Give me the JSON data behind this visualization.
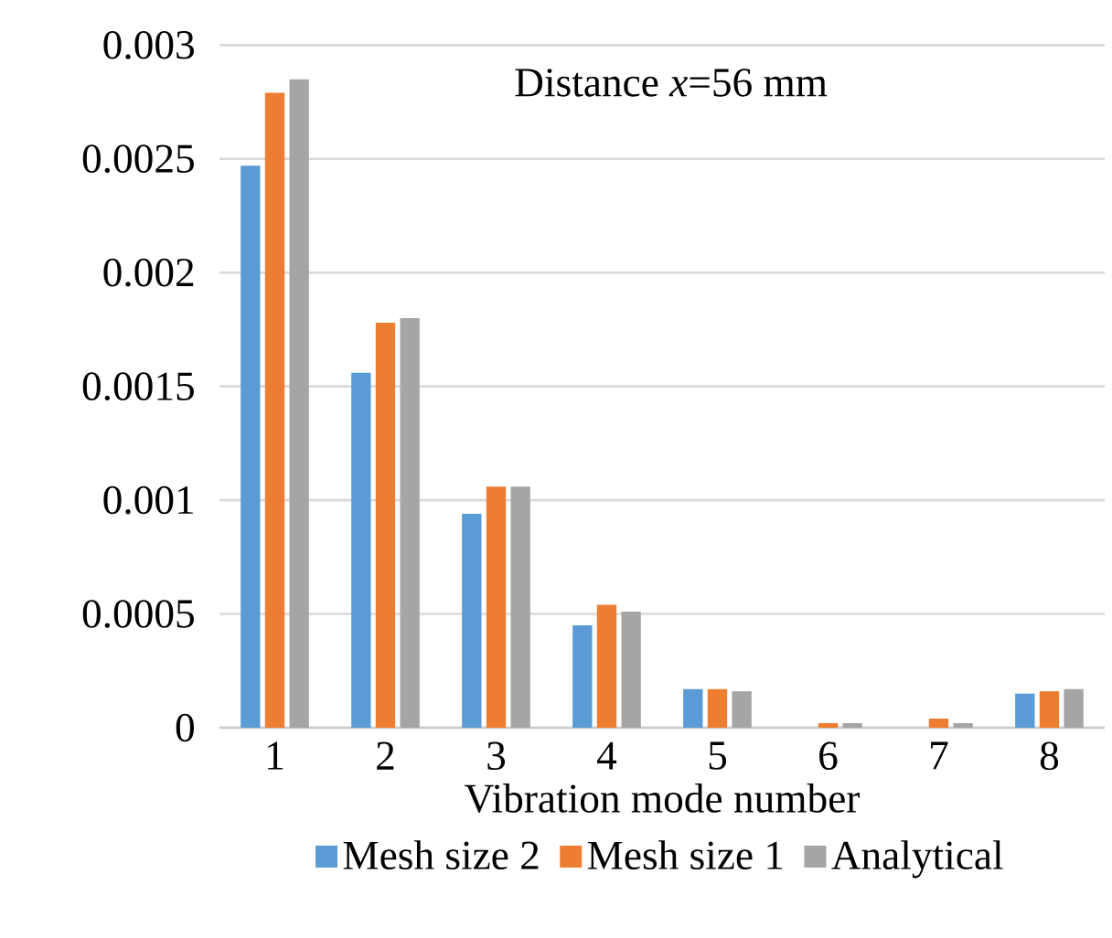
{
  "chart_data": {
    "type": "bar",
    "categories": [
      "1",
      "2",
      "3",
      "4",
      "5",
      "6",
      "7",
      "8"
    ],
    "xlabel": "Vibration mode number",
    "annotations": [
      "Distance *x*=56 mm"
    ],
    "ylim": [
      0,
      0.003
    ],
    "yticks": [
      0,
      0.0005,
      0.001,
      0.0015,
      0.002,
      0.0025,
      0.003
    ],
    "grid": "y",
    "legend": "bottom",
    "series": [
      {
        "name": "Mesh size 2",
        "color": "#5b9bd5",
        "values": [
          0.00247,
          0.00156,
          0.00094,
          0.00045,
          0.00017,
          0,
          0,
          0.00015
        ]
      },
      {
        "name": "Mesh size 1",
        "color": "#ed7d31",
        "values": [
          0.00279,
          0.00178,
          0.00106,
          0.00054,
          0.00017,
          2e-05,
          4e-05,
          0.00016
        ]
      },
      {
        "name": "Analytical",
        "color": "#a5a5a5",
        "values": [
          0.00285,
          0.0018,
          0.00106,
          0.00051,
          0.00016,
          2e-05,
          2e-05,
          0.00017
        ]
      }
    ]
  }
}
